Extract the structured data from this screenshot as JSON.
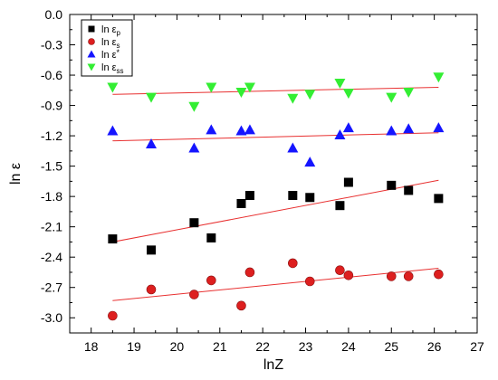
{
  "chart_data": {
    "type": "scatter",
    "title": "",
    "xlabel": "lnZ",
    "ylabel": "ln ε",
    "xlim": [
      17.5,
      27
    ],
    "ylim": [
      -3.15,
      0
    ],
    "x_ticks": [
      18,
      19,
      20,
      21,
      22,
      23,
      24,
      25,
      26,
      27
    ],
    "y_ticks": [
      0.0,
      -0.3,
      -0.6,
      -0.9,
      -1.2,
      -1.5,
      -1.8,
      -2.1,
      -2.4,
      -2.7,
      -3.0
    ],
    "x_tick_labels": [
      "18",
      "19",
      "20",
      "21",
      "22",
      "23",
      "24",
      "25",
      "26",
      "27"
    ],
    "y_tick_labels": [
      "0.0",
      "-0.3",
      "-0.6",
      "-0.9",
      "-1.2",
      "-1.5",
      "-1.8",
      "-2.1",
      "-2.4",
      "-2.7",
      "-3.0"
    ],
    "grid": false,
    "legend_position": "top-left",
    "fit_line_color": "#e83030",
    "series": [
      {
        "name": "ln ε",
        "name_sub": "p",
        "marker": "square",
        "color": "#000000",
        "points": [
          [
            18.5,
            -2.22
          ],
          [
            19.4,
            -2.33
          ],
          [
            20.4,
            -2.06
          ],
          [
            20.8,
            -2.21
          ],
          [
            21.5,
            -1.87
          ],
          [
            21.7,
            -1.79
          ],
          [
            22.7,
            -1.79
          ],
          [
            23.1,
            -1.81
          ],
          [
            23.8,
            -1.89
          ],
          [
            24.0,
            -1.66
          ],
          [
            25.0,
            -1.69
          ],
          [
            25.4,
            -1.74
          ],
          [
            26.1,
            -1.82
          ]
        ],
        "fit": [
          [
            18.5,
            -2.25
          ],
          [
            26.1,
            -1.64
          ]
        ]
      },
      {
        "name": "ln ε",
        "name_sub": "s",
        "marker": "circle",
        "color": "#dd1f1f",
        "points": [
          [
            18.5,
            -2.98
          ],
          [
            19.4,
            -2.72
          ],
          [
            20.4,
            -2.77
          ],
          [
            20.8,
            -2.63
          ],
          [
            21.5,
            -2.88
          ],
          [
            21.7,
            -2.55
          ],
          [
            22.7,
            -2.46
          ],
          [
            23.1,
            -2.64
          ],
          [
            23.8,
            -2.53
          ],
          [
            24.0,
            -2.58
          ],
          [
            25.0,
            -2.59
          ],
          [
            25.4,
            -2.59
          ],
          [
            26.1,
            -2.57
          ]
        ],
        "fit": [
          [
            18.5,
            -2.83
          ],
          [
            26.1,
            -2.51
          ]
        ]
      },
      {
        "name": "ln ε",
        "name_sup": "*",
        "marker": "triangle-up",
        "color": "#1515ff",
        "points": [
          [
            18.5,
            -1.15
          ],
          [
            19.4,
            -1.28
          ],
          [
            20.4,
            -1.32
          ],
          [
            20.8,
            -1.14
          ],
          [
            21.5,
            -1.15
          ],
          [
            21.7,
            -1.14
          ],
          [
            22.7,
            -1.32
          ],
          [
            23.1,
            -1.46
          ],
          [
            23.8,
            -1.19
          ],
          [
            24.0,
            -1.12
          ],
          [
            25.0,
            -1.15
          ],
          [
            25.4,
            -1.13
          ],
          [
            26.1,
            -1.12
          ]
        ],
        "fit": [
          [
            18.5,
            -1.25
          ],
          [
            26.1,
            -1.17
          ]
        ]
      },
      {
        "name": "ln ε",
        "name_sub": "ss",
        "marker": "triangle-down",
        "color": "#33ee33",
        "points": [
          [
            18.5,
            -0.72
          ],
          [
            19.4,
            -0.82
          ],
          [
            20.4,
            -0.91
          ],
          [
            20.8,
            -0.72
          ],
          [
            21.5,
            -0.77
          ],
          [
            21.7,
            -0.72
          ],
          [
            22.7,
            -0.83
          ],
          [
            23.1,
            -0.79
          ],
          [
            23.8,
            -0.68
          ],
          [
            24.0,
            -0.78
          ],
          [
            25.0,
            -0.82
          ],
          [
            25.4,
            -0.77
          ],
          [
            26.1,
            -0.62
          ]
        ],
        "fit": [
          [
            18.5,
            -0.79
          ],
          [
            26.1,
            -0.72
          ]
        ]
      }
    ]
  }
}
